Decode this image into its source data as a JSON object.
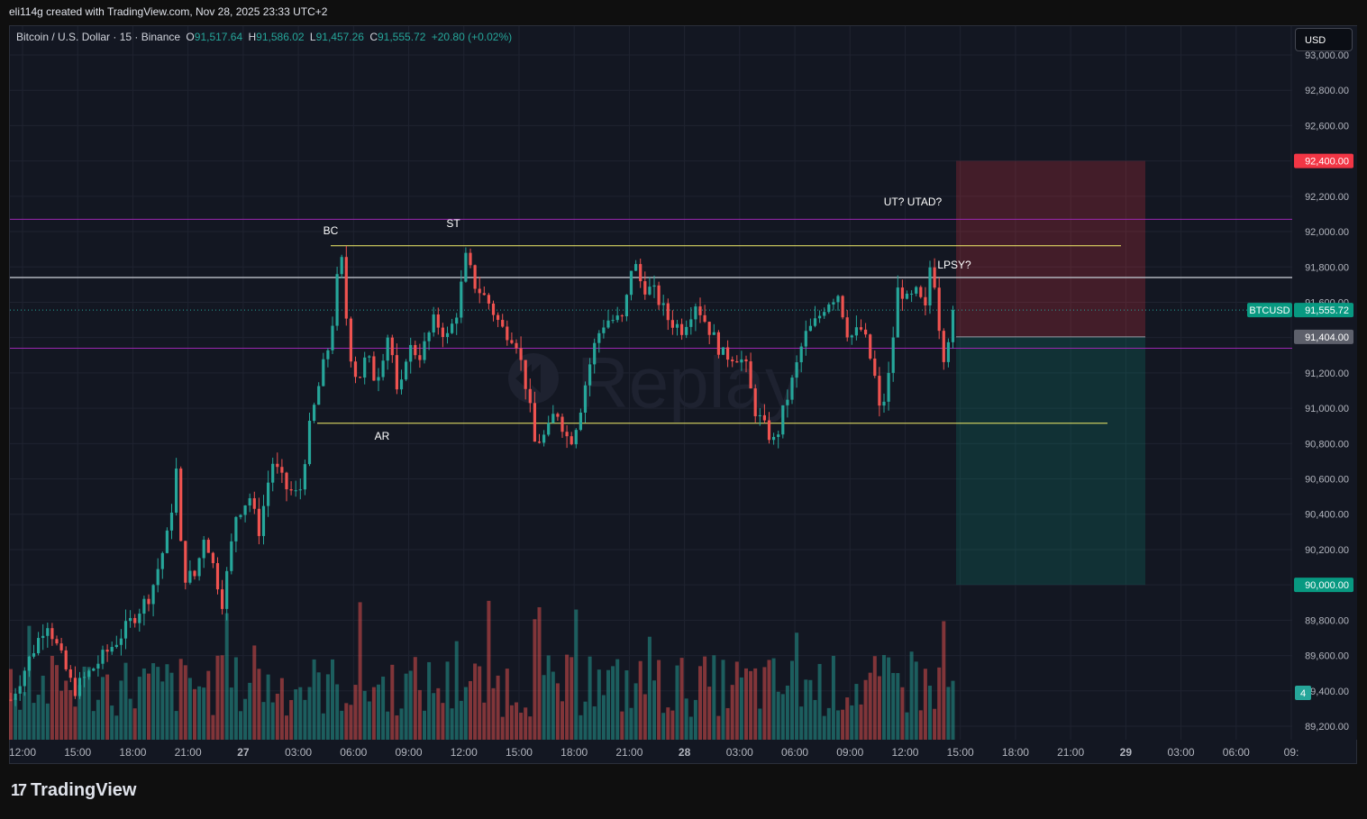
{
  "header": {
    "author_line": "eli114g created with TradingView.com, Nov 28, 2025 23:33 UTC+2"
  },
  "legend": {
    "symbol": "Bitcoin / U.S. Dollar · 15 · Binance",
    "o_label": "O",
    "o": "91,517.64",
    "h_label": "H",
    "h": "91,586.02",
    "l_label": "L",
    "l": "91,457.26",
    "c_label": "C",
    "c": "91,555.72",
    "change": "+20.80 (+0.02%)"
  },
  "currency_button": "USD",
  "footer": {
    "brand": "TradingView"
  },
  "watermark": "Replay",
  "colors": {
    "up": "#26a69a",
    "down": "#ef5350",
    "bg": "#131722",
    "grid": "#1f2330",
    "purple": "#9c27b0",
    "yellow": "#f5f06a",
    "stop_zone": "#f23645",
    "target_zone": "#089981"
  },
  "chart_data": {
    "type": "candlestick",
    "symbol": "BTCUSD",
    "interval": "15",
    "ylim": [
      89100,
      93050
    ],
    "y_ticks": [
      89200,
      89400,
      89600,
      89800,
      90000,
      90200,
      90400,
      90600,
      90800,
      91000,
      91200,
      91400,
      91600,
      91800,
      92000,
      92200,
      92400,
      92600,
      92800,
      93000
    ],
    "y_tick_labels": [
      "89,200.00",
      "89,400.00",
      "89,600.00",
      "89,800.00",
      "90,000.00",
      "90,200.00",
      "90,400.00",
      "90,600.00",
      "90,800.00",
      "91,000.00",
      "91,200.00",
      "91,400.00",
      "91,600.00",
      "91,800.00",
      "92,000.00",
      "92,200.00",
      "92,400.00",
      "92,600.00",
      "92,800.00",
      "93,000.00"
    ],
    "x_ticks": [
      "12:00",
      "15:00",
      "18:00",
      "21:00",
      "27",
      "03:00",
      "06:00",
      "09:00",
      "12:00",
      "15:00",
      "18:00",
      "21:00",
      "28",
      "03:00",
      "06:00",
      "09:00",
      "12:00",
      "15:00",
      "18:00",
      "21:00",
      "29",
      "03:00",
      "06:00",
      "09:"
    ],
    "x_ticks_bold": [
      "27",
      "28",
      "29"
    ],
    "price_anchors": [
      [
        0,
        89350
      ],
      [
        40,
        89800
      ],
      [
        70,
        89400
      ],
      [
        120,
        89700
      ],
      [
        155,
        89950
      ],
      [
        175,
        90300
      ],
      [
        185,
        90700
      ],
      [
        190,
        90050
      ],
      [
        205,
        90050
      ],
      [
        215,
        90300
      ],
      [
        235,
        89900
      ],
      [
        250,
        90400
      ],
      [
        265,
        90500
      ],
      [
        275,
        90300
      ],
      [
        290,
        90700
      ],
      [
        305,
        90550
      ],
      [
        320,
        90500
      ],
      [
        330,
        90850
      ],
      [
        345,
        91200
      ],
      [
        355,
        91400
      ],
      [
        366,
        91900
      ],
      [
        375,
        91350
      ],
      [
        385,
        91150
      ],
      [
        395,
        91300
      ],
      [
        405,
        91150
      ],
      [
        420,
        91450
      ],
      [
        430,
        91000
      ],
      [
        440,
        91350
      ],
      [
        455,
        91300
      ],
      [
        470,
        91500
      ],
      [
        485,
        91400
      ],
      [
        495,
        91550
      ],
      [
        505,
        91850
      ],
      [
        515,
        91700
      ],
      [
        530,
        91600
      ],
      [
        545,
        91450
      ],
      [
        560,
        91400
      ],
      [
        575,
        91050
      ],
      [
        580,
        90800
      ],
      [
        595,
        90850
      ],
      [
        605,
        91000
      ],
      [
        620,
        90800
      ],
      [
        630,
        90950
      ],
      [
        640,
        91200
      ],
      [
        650,
        91400
      ],
      [
        660,
        91500
      ],
      [
        680,
        91500
      ],
      [
        690,
        91850
      ],
      [
        700,
        91700
      ],
      [
        715,
        91650
      ],
      [
        730,
        91500
      ],
      [
        745,
        91450
      ],
      [
        760,
        91600
      ],
      [
        775,
        91450
      ],
      [
        790,
        91300
      ],
      [
        805,
        91300
      ],
      [
        815,
        91250
      ],
      [
        825,
        91000
      ],
      [
        835,
        90900
      ],
      [
        848,
        90800
      ],
      [
        858,
        91000
      ],
      [
        870,
        91200
      ],
      [
        880,
        91400
      ],
      [
        895,
        91500
      ],
      [
        905,
        91600
      ],
      [
        918,
        91650
      ],
      [
        930,
        91400
      ],
      [
        945,
        91450
      ],
      [
        958,
        91200
      ],
      [
        965,
        90950
      ],
      [
        975,
        91200
      ],
      [
        985,
        91700
      ],
      [
        995,
        91600
      ],
      [
        1005,
        91650
      ],
      [
        1015,
        91550
      ],
      [
        1022,
        91900
      ],
      [
        1028,
        91550
      ],
      [
        1035,
        91300
      ],
      [
        1045,
        91500
      ],
      [
        1055,
        91600
      ],
      [
        1062,
        91555
      ]
    ],
    "price_line": {
      "label": "BTCUSD",
      "value": 91555.72,
      "value_label": "91,555.72"
    },
    "horizontal_lines": [
      {
        "price": 92070,
        "color": "purple"
      },
      {
        "price": 91740,
        "color": "white"
      },
      {
        "price": 91340,
        "color": "purple"
      }
    ],
    "range_lines": [
      {
        "price": 91920,
        "color": "yellow"
      },
      {
        "price": 90915,
        "color": "yellow"
      }
    ],
    "annotations": [
      {
        "text": "BC",
        "price": 92000
      },
      {
        "text": "ST",
        "price": 92040
      },
      {
        "text": "AR",
        "price": 90850
      },
      {
        "text": "UT? UTAD?",
        "price": 92160
      },
      {
        "text": "LPSY?",
        "price": 91800
      }
    ],
    "position": {
      "direction": "short",
      "stop": 92400,
      "stop_label": "92,400.00",
      "entry": 91404,
      "entry_label": "91,404.00",
      "target": 90000,
      "target_label": "90,000.00"
    },
    "volume_badge": "4"
  }
}
